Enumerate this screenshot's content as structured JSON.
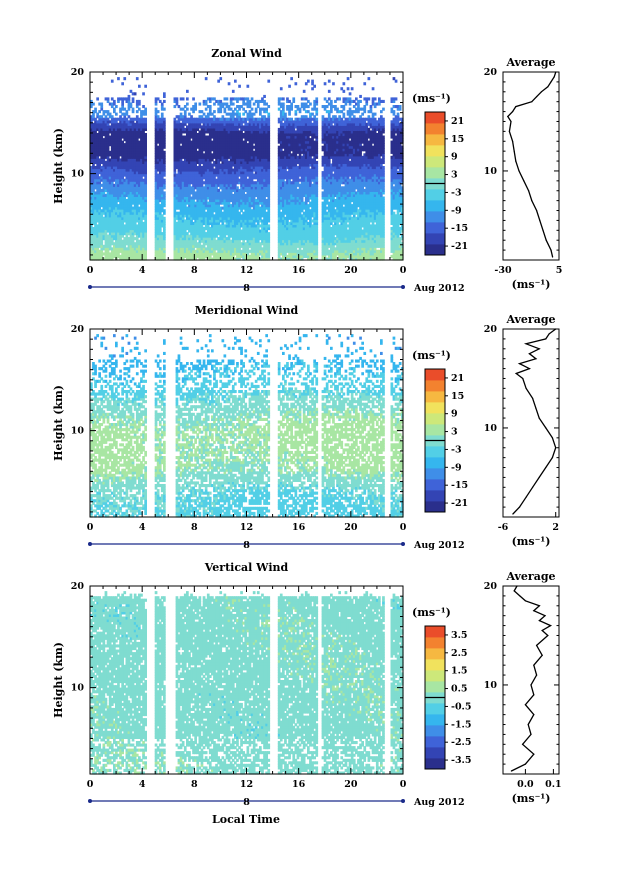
{
  "figure": {
    "xlabel": "Local Time",
    "date_label": "Aug 2012",
    "day_marker": "8",
    "average_title": "Average",
    "ylabel": "Height (km)",
    "unit_label": "(ms⁻¹)"
  },
  "chart_data": [
    {
      "type": "heatmap",
      "title": "Zonal Wind",
      "xlabel": "Local Time",
      "ylabel": "Height (km)",
      "x_ticks": [
        "0",
        "4",
        "8",
        "12",
        "16",
        "20",
        "0"
      ],
      "y_ticks": [
        "10",
        "20"
      ],
      "xlim": [
        0,
        24
      ],
      "ylim": [
        1.5,
        20
      ],
      "colorbar": {
        "ticks": [
          "21",
          "15",
          "9",
          "3",
          "-3",
          "-9",
          "-15",
          "-21"
        ],
        "range": [
          -24,
          24
        ]
      },
      "data_gaps_hours": [
        [
          4.4,
          5.0
        ],
        [
          5.8,
          6.4
        ],
        [
          13.8,
          14.4
        ],
        [
          17.5,
          17.8
        ],
        [
          22.5,
          23.0
        ]
      ],
      "typical_profile": [
        {
          "height": 2,
          "value": 3
        },
        {
          "height": 4,
          "value": -3
        },
        {
          "height": 6,
          "value": -6
        },
        {
          "height": 8,
          "value": -10
        },
        {
          "height": 10,
          "value": -15
        },
        {
          "height": 12,
          "value": -22
        },
        {
          "height": 14,
          "value": -22
        },
        {
          "height": 16,
          "value": -10
        },
        {
          "height": 18,
          "value": -15
        }
      ],
      "average": {
        "title": "Average",
        "xlabel": "(ms⁻¹)",
        "x_ticks": [
          "-30",
          "5"
        ],
        "xlim": [
          -30,
          5
        ],
        "y_ticks": [
          "10",
          "20"
        ],
        "ylim": [
          1,
          20
        ],
        "profile": [
          {
            "height": 1.3,
            "value": 1
          },
          {
            "height": 2,
            "value": 0
          },
          {
            "height": 3,
            "value": -3
          },
          {
            "height": 4,
            "value": -5
          },
          {
            "height": 5,
            "value": -7
          },
          {
            "height": 6,
            "value": -9
          },
          {
            "height": 7,
            "value": -12
          },
          {
            "height": 8,
            "value": -14
          },
          {
            "height": 9,
            "value": -17
          },
          {
            "height": 10,
            "value": -20
          },
          {
            "height": 11,
            "value": -22
          },
          {
            "height": 12,
            "value": -23
          },
          {
            "height": 13,
            "value": -24
          },
          {
            "height": 14,
            "value": -26
          },
          {
            "height": 15,
            "value": -25
          },
          {
            "height": 15.5,
            "value": -27
          },
          {
            "height": 16,
            "value": -24
          },
          {
            "height": 16.5,
            "value": -22
          },
          {
            "height": 17,
            "value": -12
          },
          {
            "height": 17.5,
            "value": -9
          },
          {
            "height": 18,
            "value": -6
          },
          {
            "height": 18.5,
            "value": -2
          },
          {
            "height": 19,
            "value": 0
          },
          {
            "height": 19.5,
            "value": 2
          },
          {
            "height": 20,
            "value": 3
          }
        ]
      }
    },
    {
      "type": "heatmap",
      "title": "Meridional Wind",
      "xlabel": "Local Time",
      "ylabel": "Height (km)",
      "x_ticks": [
        "0",
        "4",
        "8",
        "12",
        "16",
        "20",
        "0"
      ],
      "y_ticks": [
        "10",
        "20"
      ],
      "xlim": [
        0,
        24
      ],
      "ylim": [
        1.5,
        20
      ],
      "colorbar": {
        "ticks": [
          "21",
          "15",
          "9",
          "3",
          "-3",
          "-9",
          "-15",
          "-21"
        ],
        "range": [
          -24,
          24
        ]
      },
      "data_gaps_hours": [
        [
          4.4,
          5.0
        ],
        [
          5.8,
          6.6
        ],
        [
          13.8,
          14.4
        ],
        [
          17.5,
          17.8
        ],
        [
          22.5,
          23.0
        ]
      ],
      "typical_profile": [
        {
          "height": 2,
          "value": -3
        },
        {
          "height": 4,
          "value": -2
        },
        {
          "height": 6,
          "value": 2
        },
        {
          "height": 8,
          "value": 3
        },
        {
          "height": 10,
          "value": 3
        },
        {
          "height": 12,
          "value": 1
        },
        {
          "height": 14,
          "value": -3
        },
        {
          "height": 16,
          "value": -6
        },
        {
          "height": 18,
          "value": -8
        }
      ],
      "average": {
        "title": "Average",
        "xlabel": "(ms⁻¹)",
        "x_ticks": [
          "-6",
          "2"
        ],
        "xlim": [
          -6,
          2.5
        ],
        "y_ticks": [
          "10",
          "20"
        ],
        "ylim": [
          1,
          20
        ],
        "profile": [
          {
            "height": 1.3,
            "value": -4.5
          },
          {
            "height": 2,
            "value": -3.5
          },
          {
            "height": 3,
            "value": -2.5
          },
          {
            "height": 4,
            "value": -1.5
          },
          {
            "height": 5,
            "value": -0.5
          },
          {
            "height": 6,
            "value": 0.5
          },
          {
            "height": 7,
            "value": 1.5
          },
          {
            "height": 8,
            "value": 2
          },
          {
            "height": 9,
            "value": 1.5
          },
          {
            "height": 10,
            "value": 0.5
          },
          {
            "height": 11,
            "value": -0.5
          },
          {
            "height": 12,
            "value": -1
          },
          {
            "height": 13,
            "value": -1.5
          },
          {
            "height": 14,
            "value": -2.5
          },
          {
            "height": 15,
            "value": -3
          },
          {
            "height": 15.5,
            "value": -4
          },
          {
            "height": 16,
            "value": -2
          },
          {
            "height": 16.5,
            "value": -3.5
          },
          {
            "height": 17,
            "value": -1
          },
          {
            "height": 17.5,
            "value": -2
          },
          {
            "height": 18,
            "value": -0.5
          },
          {
            "height": 18.5,
            "value": -2.5
          },
          {
            "height": 19,
            "value": 0.5
          },
          {
            "height": 19.5,
            "value": 1
          },
          {
            "height": 20,
            "value": 2
          }
        ]
      }
    },
    {
      "type": "heatmap",
      "title": "Vertical Wind",
      "xlabel": "Local Time",
      "ylabel": "Height (km)",
      "x_ticks": [
        "0",
        "4",
        "8",
        "12",
        "16",
        "20",
        "0"
      ],
      "y_ticks": [
        "10",
        "20"
      ],
      "xlim": [
        0,
        24
      ],
      "ylim": [
        1.5,
        20
      ],
      "colorbar": {
        "ticks": [
          "3.5",
          "2.5",
          "1.5",
          "0.5",
          "-0.5",
          "-1.5",
          "-2.5",
          "-3.5"
        ],
        "range": [
          -4,
          4
        ]
      },
      "data_gaps_hours": [
        [
          4.4,
          5.0
        ],
        [
          5.8,
          6.6
        ],
        [
          13.8,
          14.4
        ],
        [
          17.5,
          17.8
        ],
        [
          22.5,
          23.0
        ]
      ],
      "typical_profile": [
        {
          "height": 2,
          "value": 0.1
        },
        {
          "height": 6,
          "value": 0.0
        },
        {
          "height": 10,
          "value": 0.05
        },
        {
          "height": 14,
          "value": 0.05
        },
        {
          "height": 18,
          "value": 0.0
        }
      ],
      "average": {
        "title": "Average",
        "xlabel": "(ms⁻¹)",
        "x_ticks": [
          "0.0",
          "0.1"
        ],
        "xlim": [
          -0.08,
          0.12
        ],
        "y_ticks": [
          "10",
          "20"
        ],
        "ylim": [
          1,
          20
        ],
        "profile": [
          {
            "height": 1.3,
            "value": -0.05
          },
          {
            "height": 2,
            "value": 0.0
          },
          {
            "height": 3,
            "value": 0.03
          },
          {
            "height": 4,
            "value": -0.01
          },
          {
            "height": 5,
            "value": 0.02
          },
          {
            "height": 6,
            "value": 0.01
          },
          {
            "height": 7,
            "value": 0.03
          },
          {
            "height": 8,
            "value": 0.0
          },
          {
            "height": 9,
            "value": 0.03
          },
          {
            "height": 10,
            "value": 0.02
          },
          {
            "height": 11,
            "value": 0.04
          },
          {
            "height": 12,
            "value": 0.03
          },
          {
            "height": 13,
            "value": 0.06
          },
          {
            "height": 14,
            "value": 0.04
          },
          {
            "height": 15,
            "value": 0.08
          },
          {
            "height": 15.5,
            "value": 0.06
          },
          {
            "height": 16,
            "value": 0.09
          },
          {
            "height": 16.5,
            "value": 0.05
          },
          {
            "height": 17,
            "value": 0.07
          },
          {
            "height": 17.5,
            "value": 0.03
          },
          {
            "height": 18,
            "value": 0.05
          },
          {
            "height": 18.5,
            "value": 0.0
          },
          {
            "height": 19,
            "value": -0.02
          },
          {
            "height": 19.5,
            "value": -0.04
          },
          {
            "height": 20,
            "value": -0.03
          }
        ]
      }
    }
  ]
}
